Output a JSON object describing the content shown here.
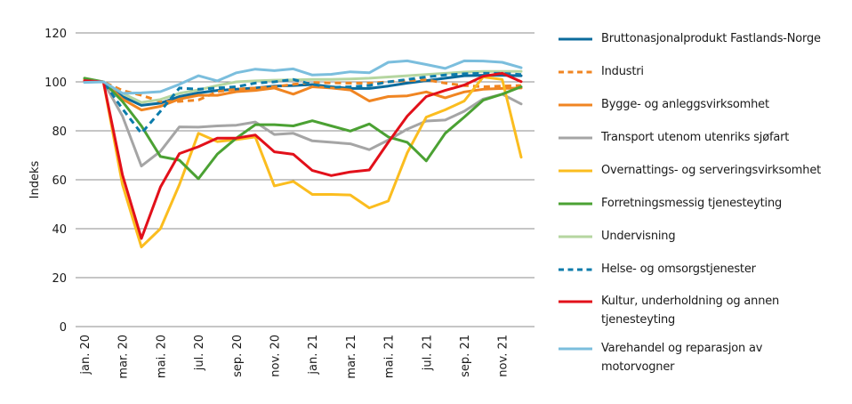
{
  "chart_data": {
    "type": "line",
    "title": "",
    "xlabel": "",
    "ylabel": "Indeks",
    "ylim": [
      0,
      120
    ],
    "yticks": [
      0,
      20,
      40,
      60,
      80,
      100,
      120
    ],
    "grid": true,
    "legend_position": "right",
    "x": [
      "jan. 20",
      "feb. 20",
      "mar. 20",
      "apr. 20",
      "mai. 20",
      "jun. 20",
      "jul. 20",
      "aug. 20",
      "sep. 20",
      "okt. 20",
      "nov. 20",
      "des. 20",
      "jan. 21",
      "feb. 21",
      "mar. 21",
      "apr. 21",
      "mai. 21",
      "jun. 21",
      "jul. 21",
      "aug. 21",
      "sep. 21",
      "okt. 21",
      "nov. 21",
      "des. 21"
    ],
    "xtick_labels": [
      "jan. 20",
      "mar. 20",
      "mai. 20",
      "jul. 20",
      "sep. 20",
      "nov. 20",
      "jan. 21",
      "mar. 21",
      "mai. 21",
      "jul. 21",
      "sep. 21",
      "nov. 21"
    ],
    "series": [
      {
        "name": "Bruttonasjonalprodukt Fastlands-Norge",
        "color": "#0b6b9c",
        "dash": false,
        "values": [
          100.5,
          100,
          94,
          90.4,
          91.3,
          94,
          95.5,
          96.5,
          97,
          97.5,
          98.3,
          98.5,
          98.9,
          98,
          97.3,
          97.3,
          98.3,
          99.5,
          100.5,
          101.5,
          102.5,
          102.7,
          102.7,
          102.5
        ]
      },
      {
        "name": "Industri",
        "color": "#f08522",
        "dash": true,
        "values": [
          100.5,
          100,
          96.5,
          94.5,
          92,
          92,
          92.6,
          96,
          97,
          97.5,
          98,
          99,
          99.8,
          99.6,
          99.5,
          99.5,
          100,
          100.5,
          100.8,
          99.5,
          98.5,
          98,
          98.3,
          98.5
        ]
      },
      {
        "name": "Bygge- og anleggsvirksomhet",
        "color": "#f08522",
        "dash": false,
        "values": [
          101,
          100,
          93,
          88.5,
          90,
          93,
          94.5,
          94.5,
          96,
          96.5,
          97.5,
          95,
          98,
          97.5,
          96.7,
          92.2,
          94,
          94.3,
          95.9,
          93.5,
          95.9,
          97,
          97.3,
          97.5
        ]
      },
      {
        "name": "Transport utenom utenriks sjøfart",
        "color": "#a5a5a5",
        "dash": false,
        "values": [
          100.5,
          100,
          86,
          65.6,
          71.6,
          81.6,
          81.5,
          82,
          82.3,
          83.6,
          78.5,
          79,
          75.9,
          75.3,
          74.7,
          72.3,
          76.2,
          80.7,
          84,
          84.4,
          88,
          93,
          95,
          91
        ]
      },
      {
        "name": "Overnattings- og serveringsvirksomhet",
        "color": "#fbbd1f",
        "dash": false,
        "values": [
          101,
          100,
          58,
          32.5,
          40,
          58,
          79,
          75.6,
          76.4,
          77.5,
          57.5,
          59.3,
          54,
          54,
          53.8,
          48.5,
          51.3,
          71,
          85.6,
          88.6,
          92.2,
          102,
          101,
          69.2
        ]
      },
      {
        "name": "Forretningsmessig tjenesteyting",
        "color": "#4ba133",
        "dash": false,
        "values": [
          101.5,
          100,
          92,
          82,
          69.5,
          68,
          60.4,
          70.5,
          77,
          82.5,
          82.5,
          82,
          84.1,
          82,
          79.9,
          82.8,
          77.5,
          75.3,
          67.7,
          79,
          85.6,
          92.5,
          95,
          98
        ]
      },
      {
        "name": "Undervisning",
        "color": "#b5d6a0",
        "dash": false,
        "values": [
          100.5,
          100,
          95.3,
          91.6,
          92.8,
          95.3,
          96.7,
          98.5,
          100,
          100.4,
          100.7,
          100.8,
          101,
          101,
          101.2,
          101.5,
          102,
          102.5,
          103,
          103.5,
          104,
          104.3,
          104.3,
          104.3
        ]
      },
      {
        "name": "Helse- og omsorgstjenester",
        "color": "#0b7bab",
        "dash": true,
        "values": [
          100.5,
          100,
          89,
          79,
          88,
          97.5,
          97,
          97.5,
          98,
          99.5,
          100,
          101,
          99,
          97.8,
          98,
          98.5,
          100,
          101,
          102,
          102.8,
          103.3,
          103.5,
          103.5,
          103
        ]
      },
      {
        "name": "Kultur, underholdning og annen tjenesteyting",
        "color": "#e2101a",
        "dash": false,
        "values": [
          100.5,
          100,
          62,
          36,
          57,
          70.7,
          73.5,
          77,
          77,
          78.3,
          71.4,
          70.4,
          63.8,
          61.7,
          63.2,
          64,
          75.3,
          86,
          94,
          96.5,
          98.7,
          102.3,
          103.5,
          100.1
        ]
      },
      {
        "name": "Varehandel og reparasjon av motorvogner",
        "color": "#7bbedd",
        "dash": false,
        "values": [
          99.8,
          100,
          95.3,
          95.5,
          96,
          99,
          102.5,
          100.4,
          103.7,
          105.2,
          104.6,
          105.3,
          102.8,
          103.1,
          104.1,
          103.7,
          108,
          108.6,
          107.1,
          105.5,
          108.6,
          108.5,
          108,
          105.8
        ]
      }
    ]
  },
  "legend": {
    "items": [
      {
        "label_lines": [
          "Bruttonasjonalprodukt Fastlands-Norge"
        ]
      },
      {
        "label_lines": [
          "Industri"
        ]
      },
      {
        "label_lines": [
          "Bygge- og anleggsvirksomhet"
        ]
      },
      {
        "label_lines": [
          "Transport utenom utenriks sjøfart"
        ]
      },
      {
        "label_lines": [
          "Overnattings- og serveringsvirksomhet"
        ]
      },
      {
        "label_lines": [
          "Forretningsmessig tjenesteyting"
        ]
      },
      {
        "label_lines": [
          "Undervisning"
        ]
      },
      {
        "label_lines": [
          "Helse- og omsorgstjenester"
        ]
      },
      {
        "label_lines": [
          "Kultur, underholdning og annen",
          "tjenesteyting"
        ]
      },
      {
        "label_lines": [
          "Varehandel og reparasjon av",
          "motorvogner"
        ]
      }
    ]
  }
}
